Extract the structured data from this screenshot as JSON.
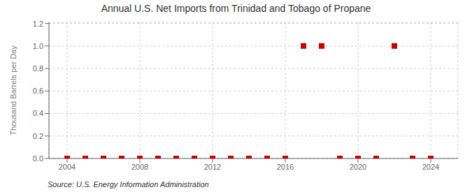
{
  "chart_data": {
    "type": "scatter",
    "title": "Annual U.S. Net Imports from Trinidad and Tobago of Propane",
    "ylabel": "Thousand Barrels per Day",
    "annotations": [
      "Source: U.S. Energy Information Administration"
    ],
    "x": [
      2004,
      2005,
      2006,
      2007,
      2008,
      2009,
      2010,
      2011,
      2012,
      2013,
      2014,
      2015,
      2016,
      2017,
      2018,
      2019,
      2020,
      2021,
      2022,
      2023,
      2024
    ],
    "values": [
      0,
      0,
      0,
      0,
      0,
      0,
      0,
      0,
      0,
      0,
      0,
      0,
      0,
      1,
      1,
      0,
      0,
      0,
      1,
      0,
      0
    ],
    "color": "#cc0000",
    "marker": "square",
    "grid": true,
    "xlim": [
      2003,
      2025.5
    ],
    "ylim": [
      0,
      1.21
    ],
    "xticks": [
      2004,
      2008,
      2012,
      2016,
      2020,
      2024
    ],
    "yticks": [
      {
        "value": 0,
        "label": "0.0"
      },
      0.2,
      0.4,
      0.6,
      0.8,
      {
        "value": 1,
        "label": "1.0"
      },
      1.2
    ]
  }
}
